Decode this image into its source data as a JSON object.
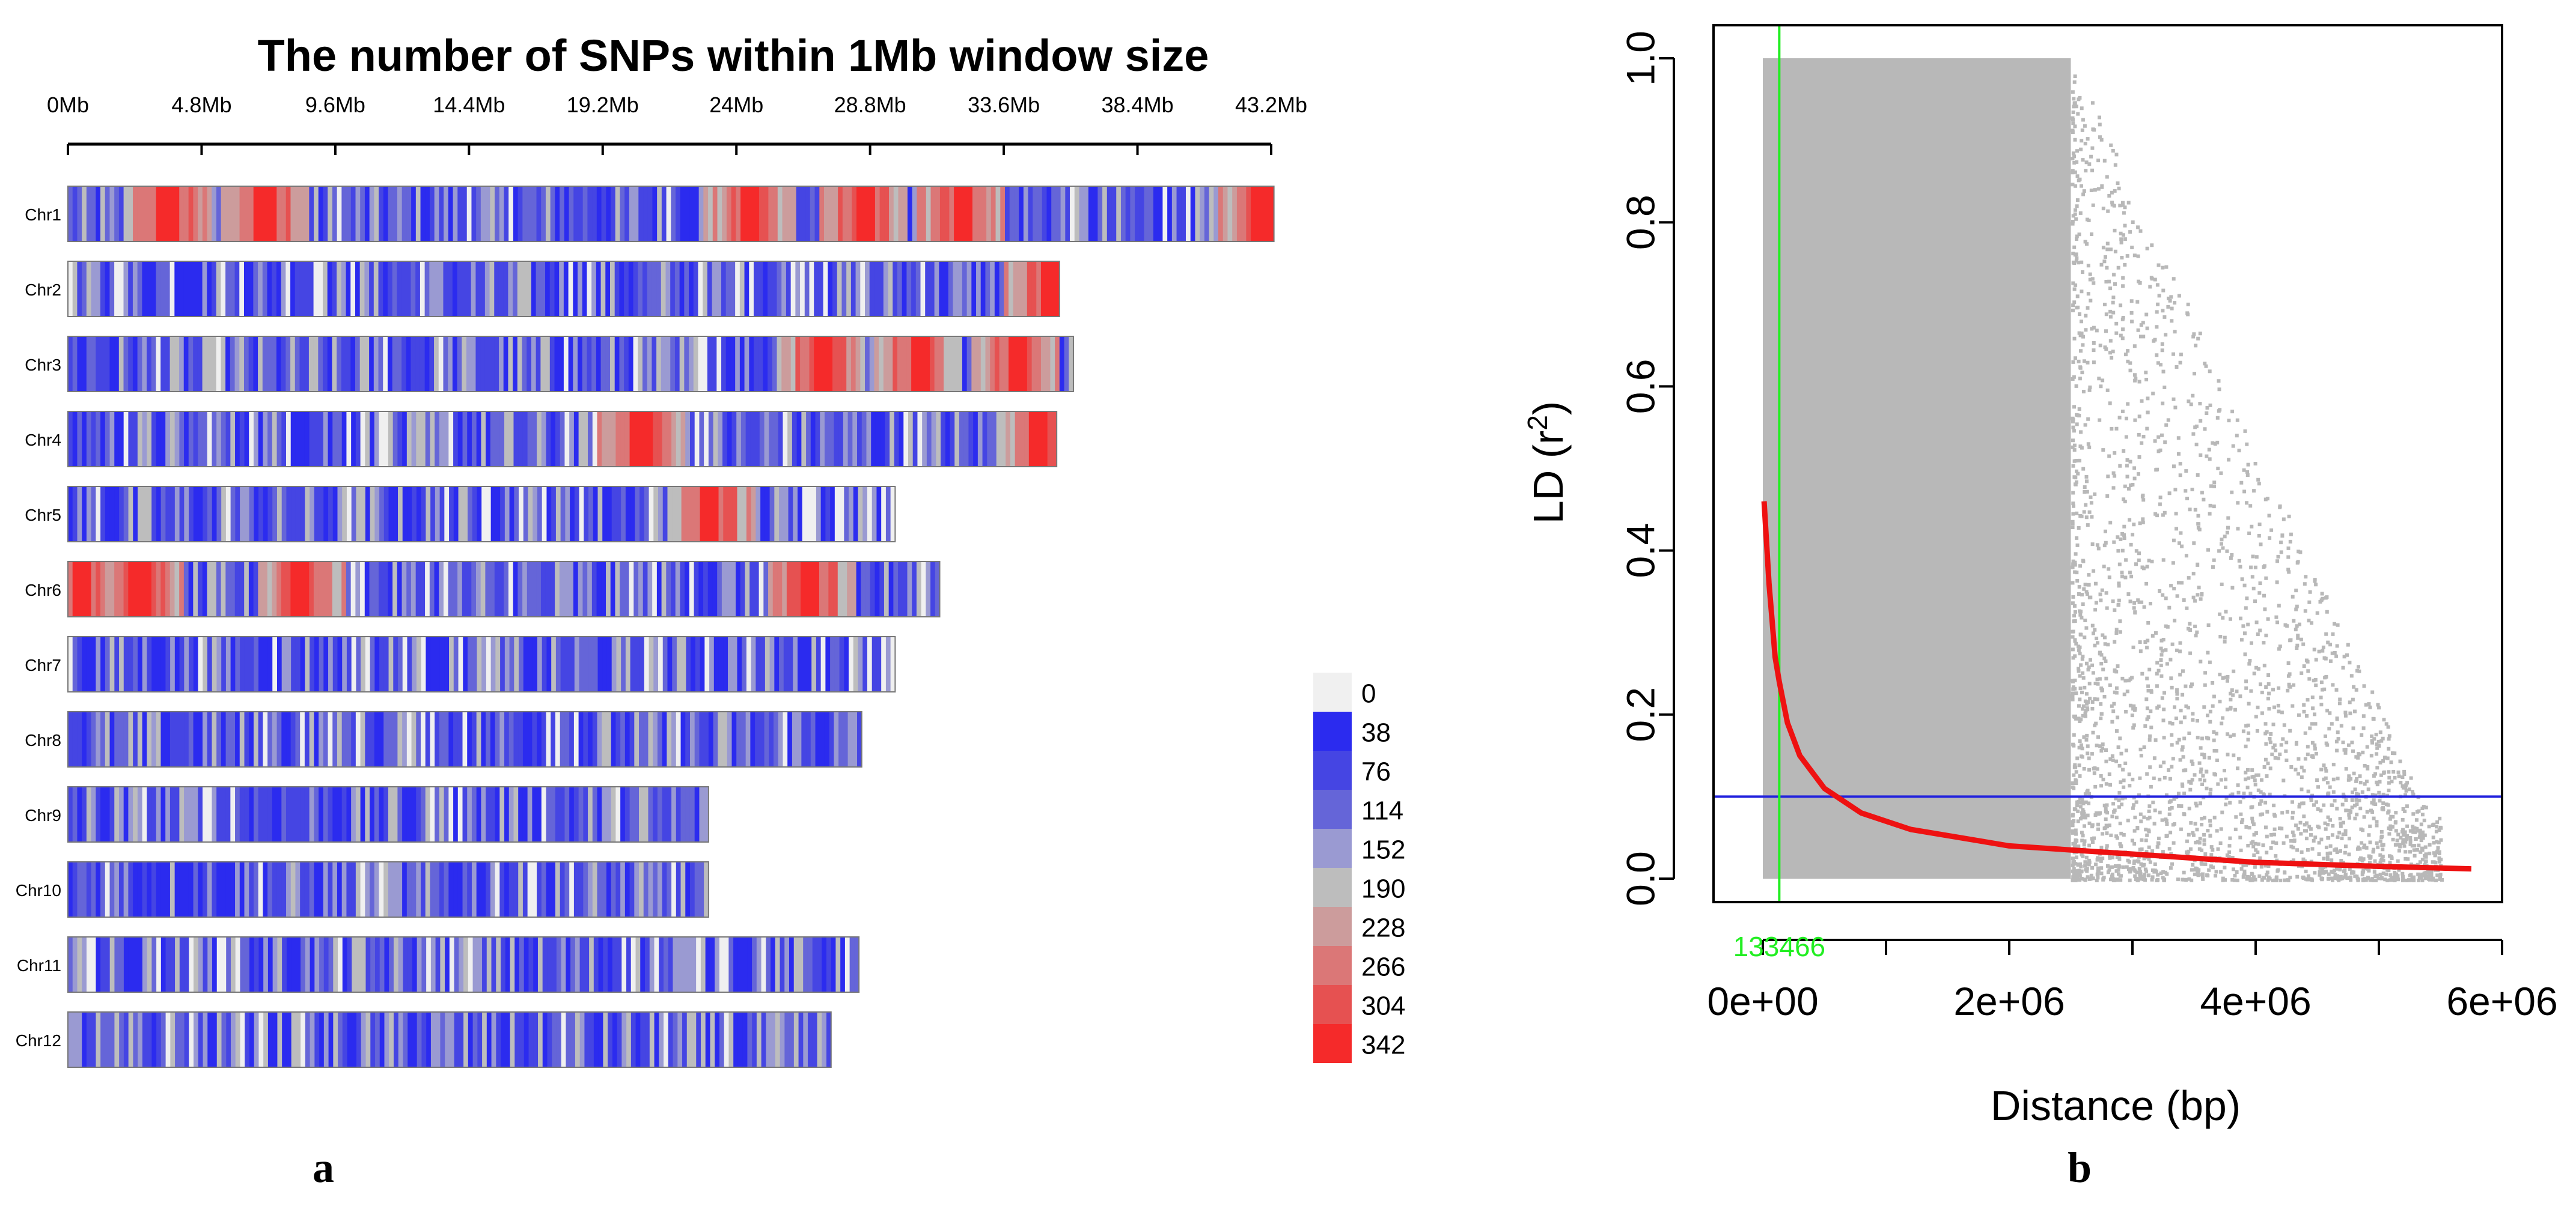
{
  "figure_labels": {
    "a": "a",
    "b": "b"
  },
  "chart_data": [
    {
      "type": "heatmap",
      "title": "The number of SNPs within 1Mb window size",
      "x_unit": "Mb",
      "xlim": [
        0,
        43.2
      ],
      "x_ticks": [
        0,
        4.8,
        9.6,
        14.4,
        19.2,
        24,
        28.8,
        33.6,
        38.4,
        43.2
      ],
      "x_tick_labels": [
        "0Mb",
        "4.8Mb",
        "9.6Mb",
        "14.4Mb",
        "19.2Mb",
        "24Mb",
        "28.8Mb",
        "33.6Mb",
        "38.4Mb",
        "43.2Mb"
      ],
      "chromosomes": [
        {
          "name": "Chr1",
          "length": 43.3,
          "hotspots": [
            3.5,
            7.0,
            24.4,
            28.5,
            32.0,
            42.8
          ]
        },
        {
          "name": "Chr2",
          "length": 35.6,
          "hotspots": [
            35.2
          ]
        },
        {
          "name": "Chr3",
          "length": 36.1,
          "hotspots": [
            27.0,
            30.5,
            34.0
          ]
        },
        {
          "name": "Chr4",
          "length": 35.5,
          "hotspots": [
            20.5,
            34.8
          ]
        },
        {
          "name": "Chr5",
          "length": 29.7,
          "hotspots": [
            23.0
          ]
        },
        {
          "name": "Chr6",
          "length": 31.3,
          "hotspots": [
            0.4,
            2.5,
            8.3,
            26.6
          ]
        },
        {
          "name": "Chr7",
          "length": 29.7,
          "hotspots": []
        },
        {
          "name": "Chr8",
          "length": 28.5,
          "hotspots": []
        },
        {
          "name": "Chr9",
          "length": 23.0,
          "hotspots": []
        },
        {
          "name": "Chr10",
          "length": 23.0,
          "hotspots": []
        },
        {
          "name": "Chr11",
          "length": 28.4,
          "hotspots": []
        },
        {
          "name": "Chr12",
          "length": 27.4,
          "hotspots": []
        }
      ],
      "legend": {
        "values": [
          "0",
          "38",
          "76",
          "114",
          "152",
          "190",
          "228",
          "266",
          "304",
          "342"
        ],
        "colors": [
          "#f0f0f0",
          "#2b2bef",
          "#4545e3",
          "#6565d8",
          "#9a9ad2",
          "#bdbdbd",
          "#cc9c9c",
          "#db7777",
          "#e65151",
          "#f52a2a"
        ]
      }
    },
    {
      "type": "scatter",
      "xlabel": "Distance (bp)",
      "ylabel_main": "LD (r",
      "ylabel_sup": "2",
      "ylabel_close": ")",
      "xlim": [
        0,
        6000000
      ],
      "ylim": [
        0,
        1.0
      ],
      "x_ticks": [
        0,
        2000000,
        4000000,
        6000000
      ],
      "x_tick_labels": [
        "0e+00",
        "2e+06",
        "4e+06",
        "6e+06"
      ],
      "y_ticks": [
        0,
        0.2,
        0.4,
        0.6,
        0.8,
        1.0
      ],
      "y_tick_labels": [
        "0.0",
        "0.2",
        "0.4",
        "0.6",
        "0.8",
        "1.0"
      ],
      "point_color": "#b8b8b8",
      "dense_region_x_max": 2500000,
      "decay_curve": {
        "color": "#ee1111",
        "x_start": 10000,
        "x_end": 5750000,
        "points": [
          [
            10000,
            0.46
          ],
          [
            50000,
            0.36
          ],
          [
            100000,
            0.27
          ],
          [
            133466,
            0.24
          ],
          [
            200000,
            0.19
          ],
          [
            300000,
            0.15
          ],
          [
            500000,
            0.11
          ],
          [
            800000,
            0.08
          ],
          [
            1200000,
            0.06
          ],
          [
            2000000,
            0.04
          ],
          [
            3000000,
            0.03
          ],
          [
            4000000,
            0.02
          ],
          [
            5000000,
            0.015
          ],
          [
            5750000,
            0.012
          ]
        ]
      },
      "threshold": {
        "r2": 0.1,
        "color": "#2222dd"
      },
      "ld_decay_distance": {
        "x": 133466,
        "label": "133466",
        "color": "#22ee22"
      }
    }
  ]
}
